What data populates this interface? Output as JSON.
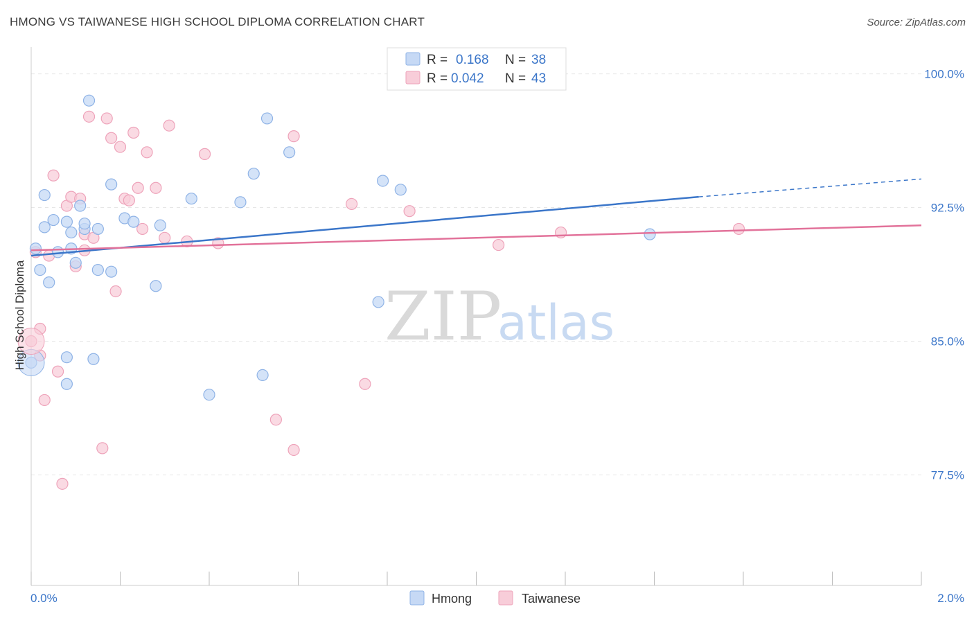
{
  "title": "HMONG VS TAIWANESE HIGH SCHOOL DIPLOMA CORRELATION CHART",
  "source": "Source: ZipAtlas.com",
  "watermark": {
    "zip": "ZIP",
    "atlas": "atlas"
  },
  "legend": {
    "rows": [
      {
        "r_label": "R =",
        "r_value": "0.168",
        "n_label": "N =",
        "n_value": "38"
      },
      {
        "r_label": "R =",
        "r_value": "0.042",
        "n_label": "N =",
        "n_value": "43"
      }
    ]
  },
  "bottom_legend": [
    "Hmong",
    "Taiwanese"
  ],
  "colors": {
    "hmong_fill": "#c6d9f5",
    "hmong_stroke": "#8fb3e6",
    "hmong_line": "#3b76c9",
    "taiwanese_fill": "#f8cdd9",
    "taiwanese_stroke": "#eea3ba",
    "taiwanese_line": "#e2729a",
    "accent_text": "#3b76c9",
    "grid": "#e6e6e6"
  },
  "chart_data": {
    "type": "scatter",
    "xlabel": "",
    "ylabel": "High School Diploma",
    "xlim": [
      0.0,
      2.0
    ],
    "ylim": [
      71.3,
      101.5
    ],
    "x_tick_labels": [
      "0.0%",
      "2.0%"
    ],
    "y_ticks": [
      100.0,
      92.5,
      85.0,
      77.5
    ],
    "y_tick_labels": [
      "100.0%",
      "92.5%",
      "85.0%",
      "77.5%"
    ],
    "grid": true,
    "legend_position": "top-center",
    "series": [
      {
        "name": "Hmong",
        "r": 0.168,
        "n": 38,
        "trend": {
          "x0": 0.0,
          "y0": 89.8,
          "x1": 1.5,
          "y1": 93.1,
          "dashed_to": 2.0,
          "dashed_y": 94.1
        },
        "points": [
          [
            0.0,
            83.8
          ],
          [
            0.01,
            90.2
          ],
          [
            0.02,
            89.0
          ],
          [
            0.03,
            93.2
          ],
          [
            0.03,
            91.4
          ],
          [
            0.04,
            88.3
          ],
          [
            0.05,
            91.8
          ],
          [
            0.06,
            90.0
          ],
          [
            0.08,
            84.1
          ],
          [
            0.08,
            82.6
          ],
          [
            0.08,
            91.7
          ],
          [
            0.09,
            90.2
          ],
          [
            0.09,
            91.1
          ],
          [
            0.1,
            89.4
          ],
          [
            0.11,
            92.6
          ],
          [
            0.12,
            91.3
          ],
          [
            0.12,
            91.6
          ],
          [
            0.13,
            98.5
          ],
          [
            0.14,
            84.0
          ],
          [
            0.15,
            89.0
          ],
          [
            0.15,
            91.3
          ],
          [
            0.18,
            88.9
          ],
          [
            0.18,
            93.8
          ],
          [
            0.21,
            91.9
          ],
          [
            0.23,
            91.7
          ],
          [
            0.28,
            88.1
          ],
          [
            0.29,
            91.5
          ],
          [
            0.36,
            93.0
          ],
          [
            0.4,
            82.0
          ],
          [
            0.47,
            92.8
          ],
          [
            0.5,
            94.4
          ],
          [
            0.52,
            83.1
          ],
          [
            0.53,
            97.5
          ],
          [
            0.58,
            95.6
          ],
          [
            0.78,
            87.2
          ],
          [
            0.79,
            94.0
          ],
          [
            0.83,
            93.5
          ],
          [
            1.39,
            91.0
          ]
        ]
      },
      {
        "name": "Taiwanese",
        "r": 0.042,
        "n": 43,
        "trend": {
          "x0": 0.0,
          "y0": 90.1,
          "x1": 2.0,
          "y1": 91.5
        },
        "points": [
          [
            0.0,
            85.0
          ],
          [
            0.01,
            90.0
          ],
          [
            0.02,
            85.7
          ],
          [
            0.02,
            84.2
          ],
          [
            0.03,
            81.7
          ],
          [
            0.04,
            89.8
          ],
          [
            0.05,
            94.3
          ],
          [
            0.06,
            83.3
          ],
          [
            0.07,
            77.0
          ],
          [
            0.08,
            92.6
          ],
          [
            0.09,
            93.1
          ],
          [
            0.1,
            89.2
          ],
          [
            0.11,
            93.0
          ],
          [
            0.12,
            91.0
          ],
          [
            0.12,
            90.1
          ],
          [
            0.13,
            97.6
          ],
          [
            0.14,
            90.8
          ],
          [
            0.16,
            79.0
          ],
          [
            0.17,
            97.5
          ],
          [
            0.18,
            96.4
          ],
          [
            0.19,
            87.8
          ],
          [
            0.2,
            95.9
          ],
          [
            0.21,
            93.0
          ],
          [
            0.22,
            92.9
          ],
          [
            0.23,
            96.7
          ],
          [
            0.24,
            93.6
          ],
          [
            0.25,
            91.3
          ],
          [
            0.26,
            95.6
          ],
          [
            0.28,
            93.6
          ],
          [
            0.3,
            90.8
          ],
          [
            0.31,
            97.1
          ],
          [
            0.35,
            90.6
          ],
          [
            0.39,
            95.5
          ],
          [
            0.42,
            90.5
          ],
          [
            0.55,
            80.6
          ],
          [
            0.59,
            78.9
          ],
          [
            0.59,
            96.5
          ],
          [
            0.72,
            92.7
          ],
          [
            0.75,
            82.6
          ],
          [
            0.85,
            92.3
          ],
          [
            1.05,
            90.4
          ],
          [
            1.19,
            91.1
          ],
          [
            1.59,
            91.3
          ]
        ]
      }
    ]
  }
}
